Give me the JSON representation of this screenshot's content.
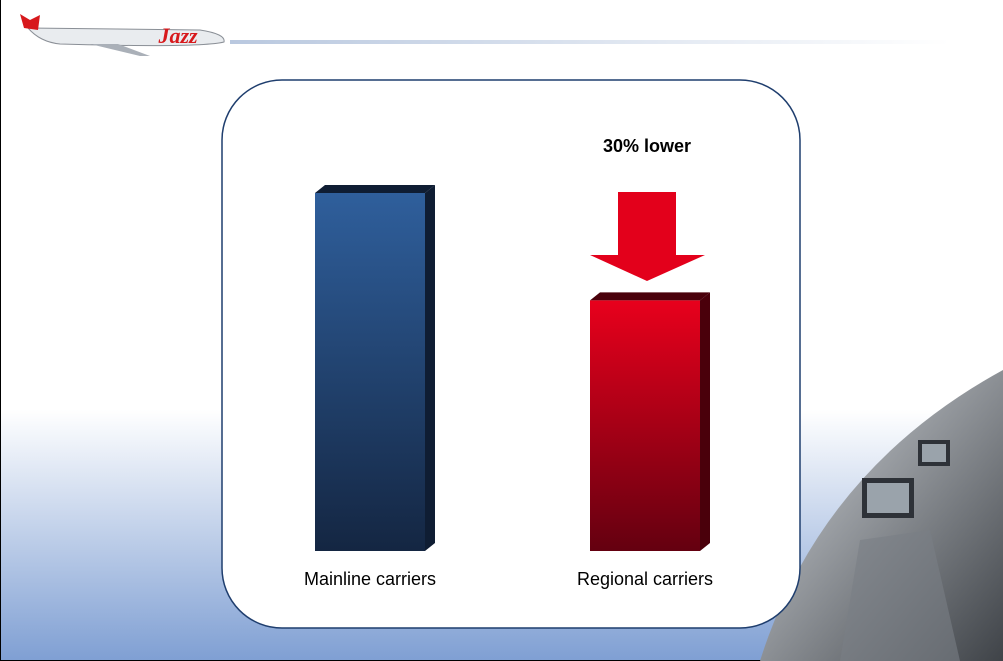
{
  "logo_text": "Jazz",
  "chart_data": {
    "type": "bar3d",
    "annotation": "30% lower",
    "categories": [
      "Mainline carriers",
      "Regional carriers"
    ],
    "values": [
      100,
      70
    ],
    "colors": [
      "#2b5a95",
      "#e0001c"
    ]
  }
}
